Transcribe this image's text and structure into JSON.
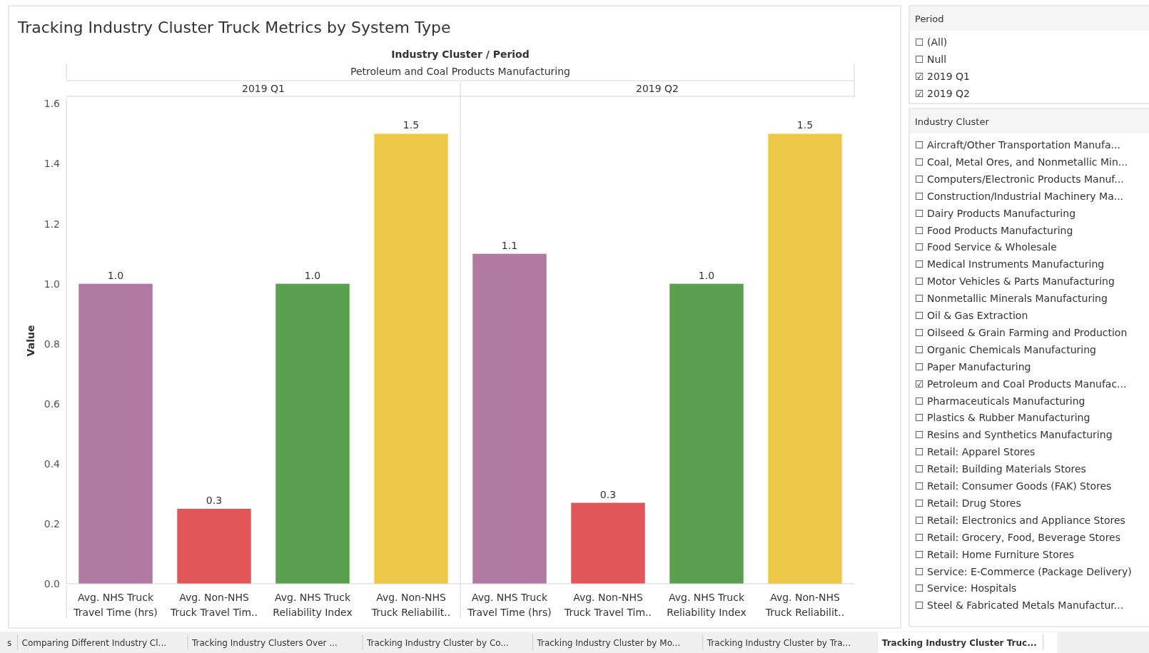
{
  "chart_data": [
    {
      "type": "bar",
      "title": "Tracking Industry Cluster Truck Metrics by System Type",
      "ylabel": "Value",
      "categories": [
        "Avg. NHS Truck Travel Time (hrs)",
        "Avg. Non-NHS Truck Travel Tim..",
        "Avg. NHS Truck Reliability Index",
        "Avg. Non-NHS Truck Reliabilit..",
        "Avg. NHS Truck Travel Time (hrs)",
        "Avg. Non-NHS Truck Travel Tim..",
        "Avg. NHS Truck Reliability Index",
        "Avg. Non-NHS Truck Reliabilit.."
      ],
      "values": [
        1.0,
        0.25,
        1.0,
        1.5,
        1.1,
        0.27,
        1.0,
        1.5
      ],
      "value_labels": [
        "1.0",
        "0.3",
        "1.0",
        "1.5",
        "1.1",
        "0.3",
        "1.0",
        "1.5"
      ],
      "colors": [
        "#b07aa1",
        "#e15759",
        "#59a14f",
        "#edc948",
        "#b07aa1",
        "#e15759",
        "#59a14f",
        "#edc948"
      ],
      "ylim": [
        0,
        1.62
      ],
      "yticks": [
        {
          "value": 0,
          "label": "0.0"
        },
        {
          "value": 0.2,
          "label": "0.2"
        },
        {
          "value": 0.4,
          "label": "0.4"
        },
        {
          "value": 0.6,
          "label": "0.6"
        },
        {
          "value": 0.8,
          "label": "0.8"
        },
        {
          "value": 1.0,
          "label": "1.0"
        },
        {
          "value": 1.2,
          "label": "1.2"
        },
        {
          "value": 1.4,
          "label": "1.4"
        },
        {
          "value": 1.6,
          "label": "1.6"
        }
      ],
      "grid": false,
      "annotations": [
        "Industry Cluster / Period",
        "Petroleum and Coal Products Manufacturing",
        "2019 Q1",
        "2019 Q2"
      ]
    },
    {
      "type": "other",
      "title": "Period",
      "annotations": [
        "☐ (All)",
        "☐ Null",
        "☑ 2019 Q1",
        "☑ 2019 Q2"
      ]
    },
    {
      "type": "other",
      "title": "Industry Cluster",
      "annotations": [
        "☐ Aircraft/Other Transportation Manufa...",
        "☐ Coal, Metal Ores, and Nonmetallic Min...",
        "☐ Computers/Electronic Products Manuf...",
        "☐ Construction/Industrial Machinery Ma...",
        "☐ Dairy Products Manufacturing",
        "☐ Food Products Manufacturing",
        "☐ Food Service & Wholesale",
        "☐ Medical Instruments Manufacturing",
        "☐ Motor Vehicles & Parts Manufacturing",
        "☐ Nonmetallic Minerals Manufacturing",
        "☐ Oil & Gas Extraction",
        "☐ Oilseed & Grain Farming and Production",
        "☐ Organic Chemicals Manufacturing",
        "☐ Paper Manufacturing",
        "☑ Petroleum and Coal Products Manufac...",
        "☐ Pharmaceuticals Manufacturing",
        "☐ Plastics & Rubber Manufacturing",
        "☐ Resins and Synthetics Manufacturing",
        "☐ Retail: Apparel Stores",
        "☐ Retail: Building Materials Stores",
        "☐ Retail: Consumer Goods (FAK) Stores",
        "☐ Retail: Drug Stores",
        "☐ Retail: Electronics and Appliance Stores",
        "☐ Retail: Grocery, Food, Beverage Stores",
        "☐ Retail: Home Furniture Stores",
        "☐ Service: E-Commerce (Package Delivery)",
        "☐ Service: Hospitals",
        "☐ Steel & Fabricated Metals Manufactur..."
      ]
    },
    {
      "type": "other",
      "annotations": [
        "s",
        "Comparing Different Industry Cl...",
        "Tracking Industry Clusters Over ...",
        "Tracking Industry Cluster by Co...",
        "Tracking Industry Cluster by Mo...",
        "Tracking Industry Cluster by Tra...",
        "Tracking Industry Cluster Truc..."
      ]
    }
  ]
}
